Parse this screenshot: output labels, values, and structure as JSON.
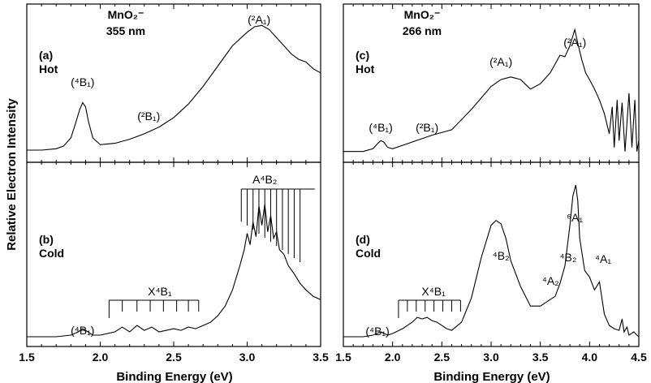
{
  "figure": {
    "ylabel": "Relative Electron Intensity",
    "xlabel": "Binding Energy (eV)",
    "xticks": [
      "1.5",
      "2.0",
      "2.5",
      "3.0",
      "3.5",
      "4.0",
      "4.5"
    ]
  },
  "chart_data": [
    {
      "id": "a",
      "type": "line",
      "panel_label": "(a)",
      "condition": "Hot",
      "title_line1": "MnO₂⁻",
      "title_line2": "355 nm",
      "xlim": [
        1.5,
        3.5
      ],
      "x": [
        1.5,
        1.6,
        1.7,
        1.75,
        1.8,
        1.83,
        1.86,
        1.88,
        1.9,
        1.92,
        1.95,
        2.0,
        2.1,
        2.2,
        2.3,
        2.4,
        2.5,
        2.6,
        2.7,
        2.8,
        2.9,
        3.0,
        3.05,
        3.1,
        3.15,
        3.2,
        3.25,
        3.3,
        3.35,
        3.4,
        3.45,
        3.5
      ],
      "y": [
        0.03,
        0.03,
        0.04,
        0.06,
        0.12,
        0.22,
        0.33,
        0.38,
        0.35,
        0.24,
        0.12,
        0.07,
        0.08,
        0.11,
        0.15,
        0.2,
        0.27,
        0.37,
        0.5,
        0.65,
        0.8,
        0.9,
        0.94,
        0.95,
        0.92,
        0.86,
        0.8,
        0.74,
        0.7,
        0.68,
        0.63,
        0.6
      ],
      "annotations": [
        {
          "text": "(⁴B₁)",
          "x": 1.88
        },
        {
          "text": "(²B₁)",
          "x": 2.33
        },
        {
          "text": "(²A₁)",
          "x": 3.07
        }
      ]
    },
    {
      "id": "b",
      "type": "line",
      "panel_label": "(b)",
      "condition": "Cold",
      "xlim": [
        1.5,
        3.5
      ],
      "x": [
        1.5,
        1.7,
        1.8,
        1.85,
        1.88,
        1.9,
        1.95,
        2.0,
        2.1,
        2.15,
        2.2,
        2.25,
        2.3,
        2.35,
        2.4,
        2.45,
        2.5,
        2.55,
        2.6,
        2.65,
        2.7,
        2.75,
        2.8,
        2.85,
        2.9,
        2.95,
        2.98,
        3.0,
        3.02,
        3.04,
        3.06,
        3.08,
        3.1,
        3.12,
        3.14,
        3.16,
        3.18,
        3.2,
        3.22,
        3.25,
        3.28,
        3.32,
        3.36,
        3.4,
        3.45,
        3.5
      ],
      "y": [
        0.01,
        0.01,
        0.02,
        0.04,
        0.06,
        0.05,
        0.02,
        0.02,
        0.04,
        0.07,
        0.04,
        0.08,
        0.05,
        0.07,
        0.04,
        0.05,
        0.06,
        0.05,
        0.07,
        0.06,
        0.08,
        0.1,
        0.14,
        0.2,
        0.3,
        0.45,
        0.55,
        0.65,
        0.58,
        0.72,
        0.63,
        0.82,
        0.7,
        0.83,
        0.66,
        0.76,
        0.62,
        0.66,
        0.55,
        0.52,
        0.45,
        0.4,
        0.34,
        0.3,
        0.26,
        0.24
      ],
      "annotations": [
        {
          "text": "(⁴B₁)",
          "x": 1.88
        },
        {
          "text": "X⁴B₁",
          "x": 2.35
        },
        {
          "text": "A⁴B₂",
          "x": 3.12
        }
      ],
      "progressions": [
        {
          "label": "X⁴B₁",
          "lines": [
            2.06,
            2.15,
            2.25,
            2.34,
            2.43,
            2.52,
            2.6,
            2.67
          ]
        },
        {
          "label": "A⁴B₂",
          "lines": [
            2.96,
            3.0,
            3.04,
            3.08,
            3.12,
            3.16,
            3.2,
            3.24,
            3.28,
            3.32,
            3.36
          ]
        }
      ]
    },
    {
      "id": "c",
      "type": "line",
      "panel_label": "(c)",
      "condition": "Hot",
      "title_line1": "MnO₂⁻",
      "title_line2": "266 nm",
      "xlim": [
        1.5,
        4.5
      ],
      "x": [
        1.5,
        1.7,
        1.8,
        1.85,
        1.88,
        1.91,
        1.95,
        2.0,
        2.2,
        2.4,
        2.6,
        2.8,
        3.0,
        3.1,
        3.2,
        3.3,
        3.4,
        3.5,
        3.6,
        3.7,
        3.75,
        3.8,
        3.85,
        3.88,
        3.92,
        3.96,
        4.0,
        4.05,
        4.1,
        4.15,
        4.2,
        4.23,
        4.25,
        4.28,
        4.3,
        4.33,
        4.36,
        4.4,
        4.43,
        4.46,
        4.48,
        4.5
      ],
      "y": [
        0.02,
        0.02,
        0.04,
        0.08,
        0.1,
        0.09,
        0.05,
        0.04,
        0.09,
        0.14,
        0.18,
        0.33,
        0.5,
        0.55,
        0.57,
        0.55,
        0.48,
        0.52,
        0.6,
        0.73,
        0.72,
        0.8,
        0.92,
        0.82,
        0.7,
        0.6,
        0.55,
        0.48,
        0.4,
        0.3,
        0.15,
        0.35,
        0.05,
        0.4,
        0.1,
        0.38,
        0.02,
        0.45,
        0.05,
        0.4,
        0.02,
        0.1
      ],
      "annotations": [
        {
          "text": "(⁴B₁)",
          "x": 1.88
        },
        {
          "text": "(²B₁)",
          "x": 2.35
        },
        {
          "text": "(²A₁)",
          "x": 3.1
        },
        {
          "text": "(²A₁)",
          "x": 3.62
        }
      ]
    },
    {
      "id": "d",
      "type": "line",
      "panel_label": "(d)",
      "condition": "Cold",
      "xlim": [
        1.5,
        4.5
      ],
      "x": [
        1.5,
        1.7,
        1.8,
        1.88,
        1.95,
        2.0,
        2.1,
        2.15,
        2.2,
        2.25,
        2.3,
        2.35,
        2.4,
        2.45,
        2.5,
        2.55,
        2.6,
        2.7,
        2.8,
        2.9,
        3.0,
        3.05,
        3.1,
        3.15,
        3.2,
        3.3,
        3.4,
        3.5,
        3.6,
        3.65,
        3.7,
        3.75,
        3.8,
        3.83,
        3.86,
        3.88,
        3.9,
        3.95,
        4.0,
        4.05,
        4.1,
        4.15,
        4.2,
        4.25,
        4.3,
        4.33,
        4.35,
        4.38,
        4.4,
        4.45,
        4.48,
        4.5
      ],
      "y": [
        0.01,
        0.01,
        0.02,
        0.04,
        0.02,
        0.03,
        0.06,
        0.08,
        0.1,
        0.13,
        0.12,
        0.13,
        0.11,
        0.1,
        0.08,
        0.06,
        0.05,
        0.1,
        0.25,
        0.5,
        0.7,
        0.73,
        0.71,
        0.62,
        0.48,
        0.32,
        0.2,
        0.2,
        0.24,
        0.26,
        0.34,
        0.45,
        0.7,
        0.88,
        0.95,
        0.85,
        0.62,
        0.42,
        0.38,
        0.3,
        0.35,
        0.15,
        0.08,
        0.06,
        0.05,
        0.12,
        0.04,
        0.07,
        0.02,
        0.04,
        0.02,
        0.01
      ],
      "annotations": [
        {
          "text": "(⁴B₁)",
          "x": 1.88
        },
        {
          "text": "X⁴B₁",
          "x": 2.35
        },
        {
          "text": "⁴B₂",
          "x": 3.1
        },
        {
          "text": "⁴A₂",
          "x": 3.62
        },
        {
          "text": "⁴B₂",
          "x": 3.7
        },
        {
          "text": "⁶A₁",
          "x": 3.85
        },
        {
          "text": "⁴A₁",
          "x": 4.08
        }
      ],
      "progressions": [
        {
          "label": "X⁴B₁",
          "lines": [
            2.06,
            2.15,
            2.24,
            2.33,
            2.42,
            2.51,
            2.6,
            2.69
          ]
        }
      ]
    }
  ]
}
